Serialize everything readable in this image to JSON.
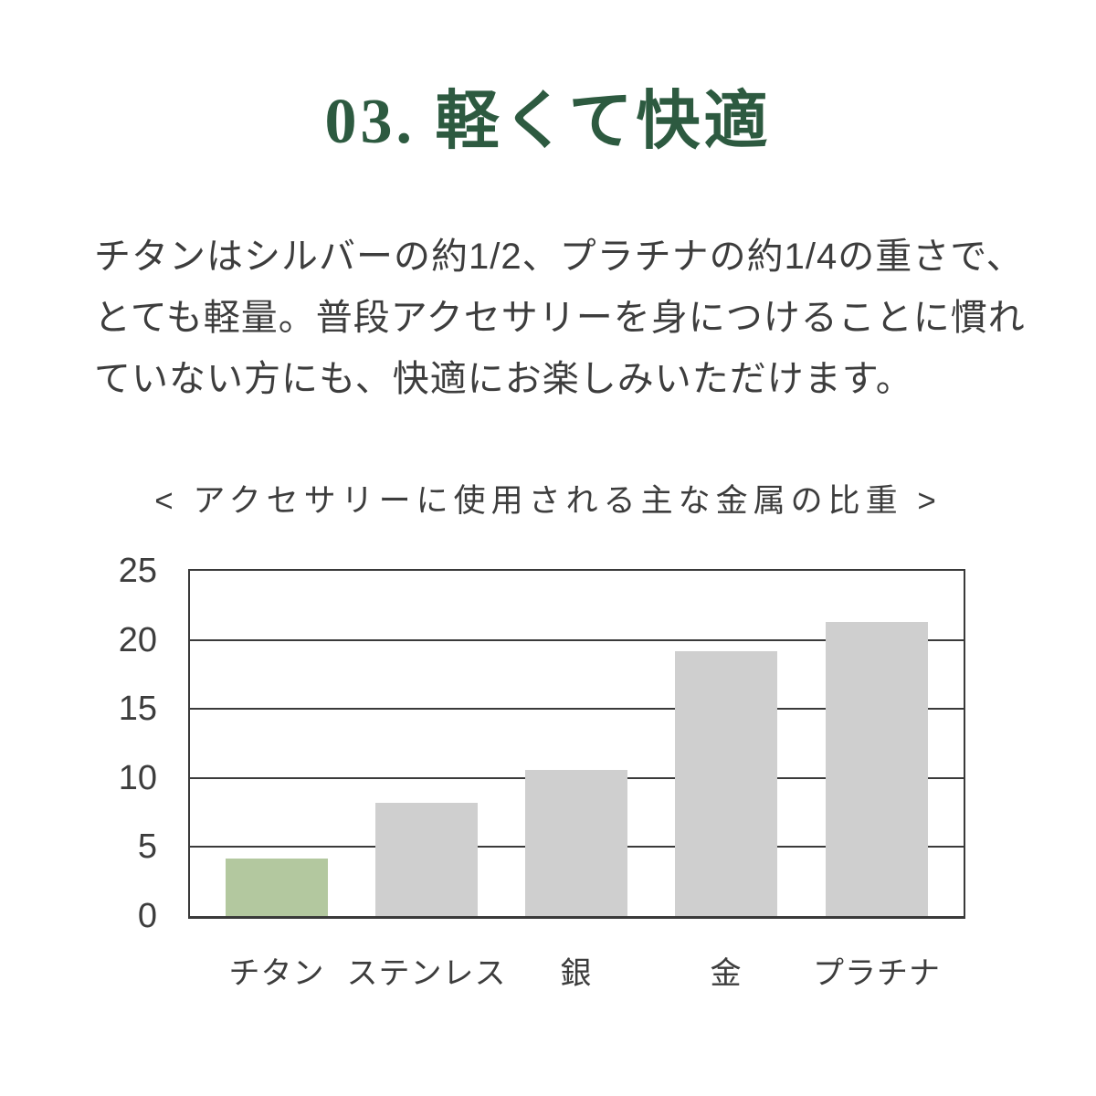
{
  "page": {
    "background": "#ffffff"
  },
  "heading": {
    "text": "03. 軽くて快適",
    "color": "#2d5a40"
  },
  "paragraph": {
    "color": "#3d3d3d",
    "lines": [
      "チタンはシルバーの約1/2、プラチナの約1/4の重さで、",
      "とても軽量。普段アクセサリーを身につけることに慣れ",
      "ていない方にも、快適にお楽しみいただけます。"
    ]
  },
  "chart_data": {
    "type": "bar",
    "title": "< アクセサリーに使用される主な金属の比重 >",
    "categories": [
      "チタン",
      "ステンレス",
      "銀",
      "金",
      "プラチナ"
    ],
    "values": [
      4.2,
      8.2,
      10.6,
      19.2,
      21.3
    ],
    "xlabel": "",
    "ylabel": "",
    "ylim": [
      0,
      25
    ],
    "yticks": [
      0,
      5,
      10,
      15,
      20,
      25
    ],
    "grid": true,
    "legend": false,
    "axis_color": "#3a3a3a",
    "bar_colors": [
      "#b3c89f",
      "#cfcfcf",
      "#cfcfcf",
      "#cfcfcf",
      "#cfcfcf"
    ],
    "highlight_category": "チタン",
    "highlight_color": "#b3c89f",
    "default_bar_color": "#cfcfcf"
  }
}
